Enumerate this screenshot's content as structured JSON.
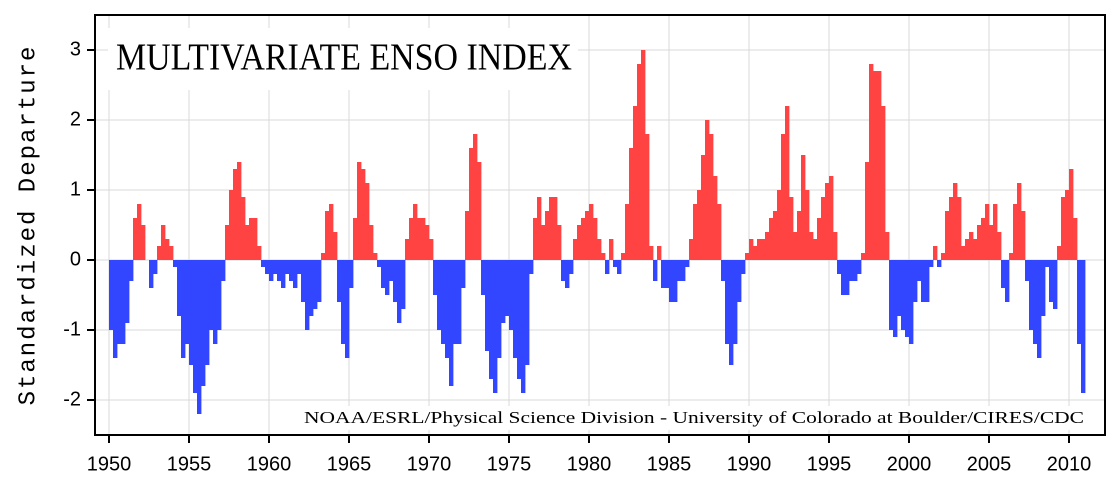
{
  "chart_data": {
    "type": "bar",
    "title": "MULTIVARIATE ENSO INDEX",
    "y_label": "Standardized Departure",
    "credit": "NOAA/ESRL/Physical Science Division - University of Colorado at Boulder/CIRES/CDC",
    "positive_color": "#ff4242",
    "negative_color": "#3346ff",
    "grid": true,
    "xlim": [
      1949.125,
      2012.25
    ],
    "ylim": [
      -2.5,
      3.5
    ],
    "xticks": [
      1950,
      1955,
      1960,
      1965,
      1970,
      1975,
      1980,
      1985,
      1990,
      1995,
      2000,
      2005,
      2010
    ],
    "yticks": [
      -2,
      -1,
      0,
      1,
      2,
      3
    ],
    "x": [
      1950,
      1950.25,
      1950.5,
      1950.75,
      1951,
      1951.25,
      1951.5,
      1951.75,
      1952,
      1952.25,
      1952.5,
      1952.75,
      1953,
      1953.25,
      1953.5,
      1953.75,
      1954,
      1954.25,
      1954.5,
      1954.75,
      1955,
      1955.25,
      1955.5,
      1955.75,
      1956,
      1956.25,
      1956.5,
      1956.75,
      1957,
      1957.25,
      1957.5,
      1957.75,
      1958,
      1958.25,
      1958.5,
      1958.75,
      1959,
      1959.25,
      1959.5,
      1959.75,
      1960,
      1960.25,
      1960.5,
      1960.75,
      1961,
      1961.25,
      1961.5,
      1961.75,
      1962,
      1962.25,
      1962.5,
      1962.75,
      1963,
      1963.25,
      1963.5,
      1963.75,
      1964,
      1964.25,
      1964.5,
      1964.75,
      1965,
      1965.25,
      1965.5,
      1965.75,
      1966,
      1966.25,
      1966.5,
      1966.75,
      1967,
      1967.25,
      1967.5,
      1967.75,
      1968,
      1968.25,
      1968.5,
      1968.75,
      1969,
      1969.25,
      1969.5,
      1969.75,
      1970,
      1970.25,
      1970.5,
      1970.75,
      1971,
      1971.25,
      1971.5,
      1971.75,
      1972,
      1972.25,
      1972.5,
      1972.75,
      1973,
      1973.25,
      1973.5,
      1973.75,
      1974,
      1974.25,
      1974.5,
      1974.75,
      1975,
      1975.25,
      1975.5,
      1975.75,
      1976,
      1976.25,
      1976.5,
      1976.75,
      1977,
      1977.25,
      1977.5,
      1977.75,
      1978,
      1978.25,
      1978.5,
      1978.75,
      1979,
      1979.25,
      1979.5,
      1979.75,
      1980,
      1980.25,
      1980.5,
      1980.75,
      1981,
      1981.25,
      1981.5,
      1981.75,
      1982,
      1982.25,
      1982.5,
      1982.75,
      1983,
      1983.25,
      1983.5,
      1983.75,
      1984,
      1984.25,
      1984.5,
      1984.75,
      1985,
      1985.25,
      1985.5,
      1985.75,
      1986,
      1986.25,
      1986.5,
      1986.75,
      1987,
      1987.25,
      1987.5,
      1987.75,
      1988,
      1988.25,
      1988.5,
      1988.75,
      1989,
      1989.25,
      1989.5,
      1989.75,
      1990,
      1990.25,
      1990.5,
      1990.75,
      1991,
      1991.25,
      1991.5,
      1991.75,
      1992,
      1992.25,
      1992.5,
      1992.75,
      1993,
      1993.25,
      1993.5,
      1993.75,
      1994,
      1994.25,
      1994.5,
      1994.75,
      1995,
      1995.25,
      1995.5,
      1995.75,
      1996,
      1996.25,
      1996.5,
      1996.75,
      1997,
      1997.25,
      1997.5,
      1997.75,
      1998,
      1998.25,
      1998.5,
      1998.75,
      1999,
      1999.25,
      1999.5,
      1999.75,
      2000,
      2000.25,
      2000.5,
      2000.75,
      2001,
      2001.25,
      2001.5,
      2001.75,
      2002,
      2002.25,
      2002.5,
      2002.75,
      2003,
      2003.25,
      2003.5,
      2003.75,
      2004,
      2004.25,
      2004.5,
      2004.75,
      2005,
      2005.25,
      2005.5,
      2005.75,
      2006,
      2006.25,
      2006.5,
      2006.75,
      2007,
      2007.25,
      2007.5,
      2007.75,
      2008,
      2008.25,
      2008.5,
      2008.75,
      2009,
      2009.25,
      2009.5,
      2009.75,
      2010,
      2010.25,
      2010.5,
      2010.75
    ],
    "values": [
      -1.0,
      -1.4,
      -1.2,
      -1.2,
      -0.9,
      -0.3,
      0.6,
      0.8,
      0.5,
      0.0,
      -0.4,
      -0.2,
      0.2,
      0.5,
      0.3,
      0.2,
      -0.1,
      -0.8,
      -1.4,
      -1.2,
      -1.5,
      -1.9,
      -2.2,
      -1.8,
      -1.5,
      -1.0,
      -1.2,
      -1.0,
      -0.3,
      0.5,
      1.0,
      1.3,
      1.4,
      0.9,
      0.5,
      0.6,
      0.6,
      0.2,
      -0.1,
      -0.2,
      -0.3,
      -0.2,
      -0.3,
      -0.4,
      -0.2,
      -0.3,
      -0.4,
      -0.2,
      -0.6,
      -1.0,
      -0.8,
      -0.7,
      -0.6,
      0.1,
      0.7,
      0.8,
      0.4,
      -0.6,
      -1.2,
      -1.4,
      -0.4,
      0.6,
      1.4,
      1.3,
      1.1,
      0.5,
      0.1,
      -0.1,
      -0.4,
      -0.5,
      -0.3,
      -0.6,
      -0.9,
      -0.7,
      0.3,
      0.6,
      0.8,
      0.6,
      0.6,
      0.5,
      0.3,
      -0.5,
      -1.0,
      -1.2,
      -1.4,
      -1.8,
      -1.2,
      -1.2,
      -0.4,
      0.7,
      1.6,
      1.8,
      1.4,
      -0.5,
      -1.3,
      -1.7,
      -1.9,
      -1.4,
      -0.9,
      -0.8,
      -1.0,
      -1.4,
      -1.7,
      -1.9,
      -1.5,
      -0.2,
      0.6,
      0.9,
      0.5,
      0.7,
      0.9,
      0.9,
      0.5,
      -0.3,
      -0.4,
      -0.2,
      0.3,
      0.5,
      0.6,
      0.7,
      0.8,
      0.6,
      0.3,
      0.1,
      -0.2,
      0.3,
      -0.1,
      -0.2,
      0.1,
      0.8,
      1.6,
      2.2,
      2.8,
      3.0,
      1.8,
      0.2,
      -0.3,
      0.2,
      -0.4,
      -0.4,
      -0.6,
      -0.6,
      -0.3,
      -0.3,
      -0.1,
      0.3,
      0.8,
      1.0,
      1.5,
      2.0,
      1.8,
      1.2,
      0.8,
      -0.3,
      -1.2,
      -1.5,
      -1.2,
      -0.6,
      -0.2,
      0.1,
      0.3,
      0.2,
      0.3,
      0.3,
      0.4,
      0.6,
      0.7,
      1.0,
      1.8,
      2.2,
      0.9,
      0.4,
      0.7,
      1.5,
      1.0,
      0.4,
      0.3,
      0.6,
      0.9,
      1.1,
      1.2,
      0.4,
      -0.2,
      -0.5,
      -0.5,
      -0.3,
      -0.3,
      -0.2,
      0.1,
      1.4,
      2.8,
      2.7,
      2.7,
      2.2,
      0.4,
      -1.0,
      -1.1,
      -0.8,
      -1.0,
      -1.1,
      -1.2,
      -0.6,
      -0.3,
      -0.6,
      -0.6,
      -0.1,
      0.2,
      -0.1,
      0.1,
      0.7,
      0.9,
      1.1,
      0.9,
      0.2,
      0.3,
      0.4,
      0.3,
      0.5,
      0.6,
      0.8,
      0.5,
      0.8,
      0.4,
      -0.4,
      -0.6,
      0.1,
      0.8,
      1.1,
      0.7,
      -0.3,
      -1.0,
      -1.2,
      -1.4,
      -0.8,
      -0.1,
      -0.6,
      -0.7,
      0.2,
      0.9,
      1.0,
      1.3,
      0.6,
      -1.2,
      -1.9
    ]
  }
}
